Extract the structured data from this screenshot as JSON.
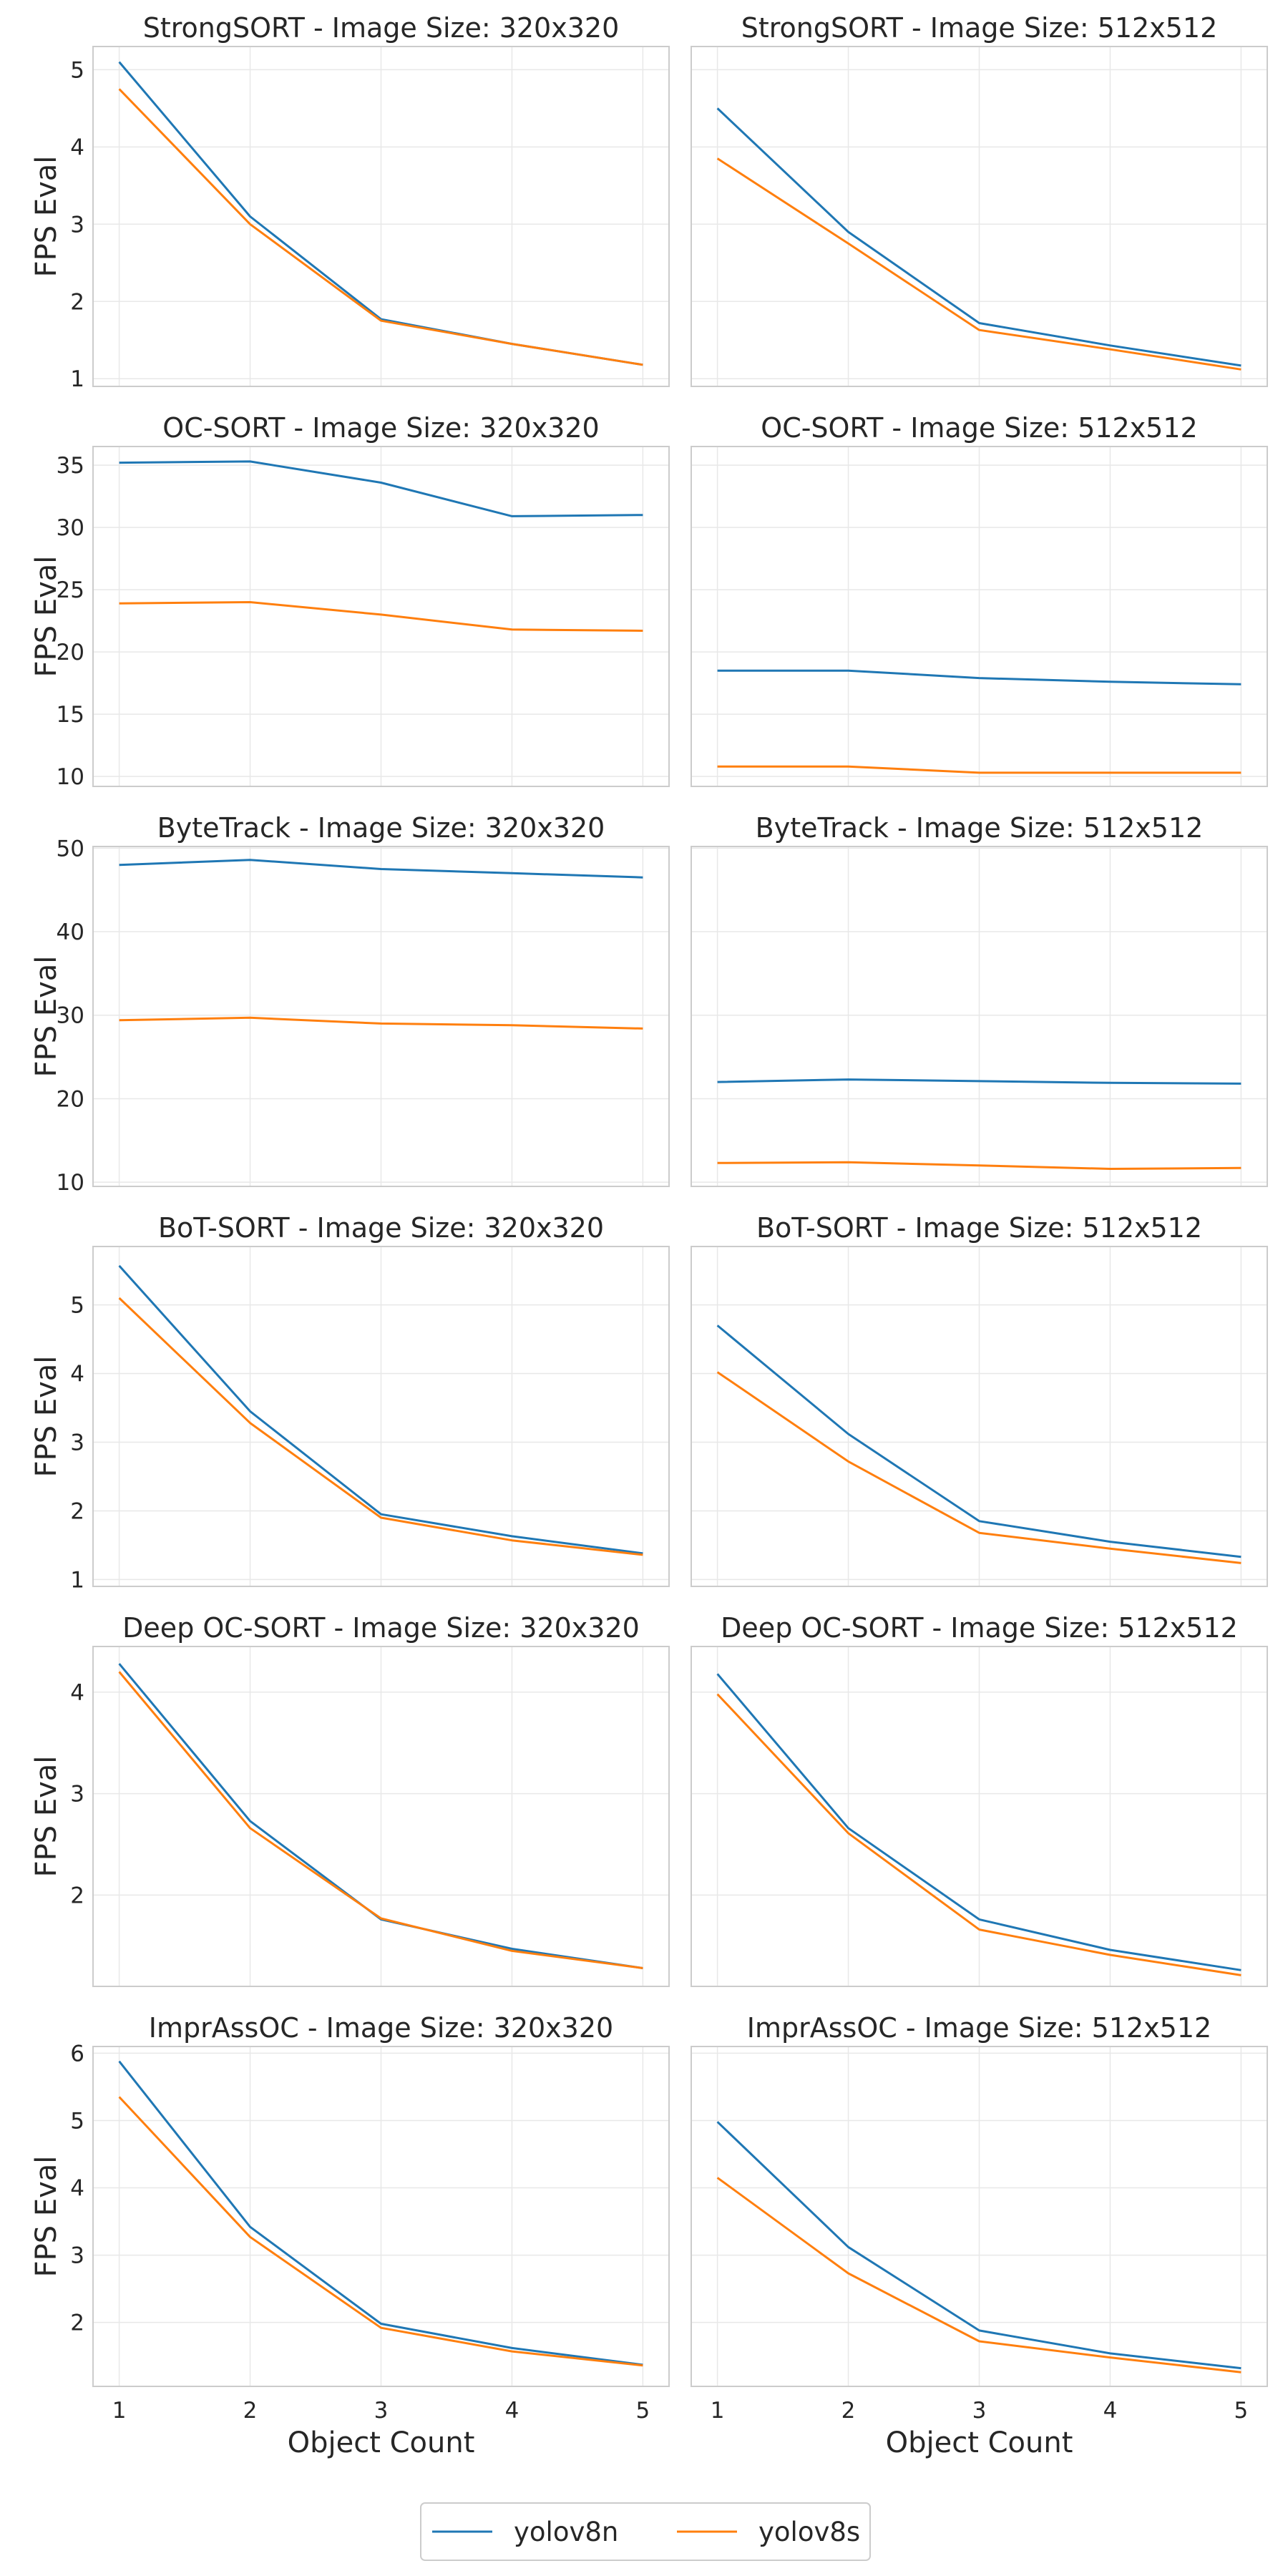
{
  "legend": [
    {
      "name": "yolov8n",
      "color": "#1f77b4"
    },
    {
      "name": "yolov8s",
      "color": "#ff7f0e"
    }
  ],
  "chart_data": [
    {
      "type": "line",
      "title": "StrongSORT - Image Size: 320x320",
      "xlabel": "",
      "ylabel": "FPS Eval",
      "x": [
        1,
        2,
        3,
        4,
        5
      ],
      "ylim": [
        0.9,
        5.3
      ],
      "yticks": [
        1,
        2,
        3,
        4,
        5
      ],
      "series": [
        {
          "name": "yolov8n",
          "values": [
            5.1,
            3.1,
            1.77,
            1.45,
            1.18
          ]
        },
        {
          "name": "yolov8s",
          "values": [
            4.75,
            3.0,
            1.75,
            1.45,
            1.18
          ]
        }
      ]
    },
    {
      "type": "line",
      "title": "StrongSORT - Image Size: 512x512",
      "xlabel": "",
      "ylabel": "",
      "x": [
        1,
        2,
        3,
        4,
        5
      ],
      "ylim": [
        0.9,
        5.3
      ],
      "yticks": [],
      "series": [
        {
          "name": "yolov8n",
          "values": [
            4.5,
            2.9,
            1.72,
            1.43,
            1.17
          ]
        },
        {
          "name": "yolov8s",
          "values": [
            3.85,
            2.75,
            1.63,
            1.38,
            1.12
          ]
        }
      ]
    },
    {
      "type": "line",
      "title": "OC-SORT - Image Size: 320x320",
      "xlabel": "",
      "ylabel": "FPS Eval",
      "x": [
        1,
        2,
        3,
        4,
        5
      ],
      "ylim": [
        9.2,
        36.5
      ],
      "yticks": [
        10,
        15,
        20,
        25,
        30,
        35
      ],
      "series": [
        {
          "name": "yolov8n",
          "values": [
            35.2,
            35.3,
            33.6,
            30.9,
            31.0
          ]
        },
        {
          "name": "yolov8s",
          "values": [
            23.9,
            24.0,
            23.0,
            21.8,
            21.7
          ]
        }
      ]
    },
    {
      "type": "line",
      "title": "OC-SORT - Image Size: 512x512",
      "xlabel": "",
      "ylabel": "",
      "x": [
        1,
        2,
        3,
        4,
        5
      ],
      "ylim": [
        9.2,
        36.5
      ],
      "yticks": [],
      "series": [
        {
          "name": "yolov8n",
          "values": [
            18.5,
            18.5,
            17.9,
            17.6,
            17.4
          ]
        },
        {
          "name": "yolov8s",
          "values": [
            10.8,
            10.8,
            10.3,
            10.3,
            10.3
          ]
        }
      ]
    },
    {
      "type": "line",
      "title": "ByteTrack - Image Size: 320x320",
      "xlabel": "",
      "ylabel": "FPS Eval",
      "x": [
        1,
        2,
        3,
        4,
        5
      ],
      "ylim": [
        9.5,
        50.2
      ],
      "yticks": [
        10,
        20,
        30,
        40,
        50
      ],
      "series": [
        {
          "name": "yolov8n",
          "values": [
            48.0,
            48.6,
            47.5,
            47.0,
            46.5
          ]
        },
        {
          "name": "yolov8s",
          "values": [
            29.4,
            29.7,
            29.0,
            28.8,
            28.4
          ]
        }
      ]
    },
    {
      "type": "line",
      "title": "ByteTrack - Image Size: 512x512",
      "xlabel": "",
      "ylabel": "",
      "x": [
        1,
        2,
        3,
        4,
        5
      ],
      "ylim": [
        9.5,
        50.2
      ],
      "yticks": [],
      "series": [
        {
          "name": "yolov8n",
          "values": [
            22.0,
            22.3,
            22.1,
            21.9,
            21.8
          ]
        },
        {
          "name": "yolov8s",
          "values": [
            12.3,
            12.4,
            12.0,
            11.6,
            11.7
          ]
        }
      ]
    },
    {
      "type": "line",
      "title": "BoT-SORT - Image Size: 320x320",
      "xlabel": "",
      "ylabel": "FPS Eval",
      "x": [
        1,
        2,
        3,
        4,
        5
      ],
      "ylim": [
        0.9,
        5.85
      ],
      "yticks": [
        1,
        2,
        3,
        4,
        5
      ],
      "series": [
        {
          "name": "yolov8n",
          "values": [
            5.57,
            3.45,
            1.95,
            1.63,
            1.38
          ]
        },
        {
          "name": "yolov8s",
          "values": [
            5.1,
            3.28,
            1.9,
            1.57,
            1.36
          ]
        }
      ]
    },
    {
      "type": "line",
      "title": "BoT-SORT - Image Size: 512x512",
      "xlabel": "",
      "ylabel": "",
      "x": [
        1,
        2,
        3,
        4,
        5
      ],
      "ylim": [
        0.9,
        5.85
      ],
      "yticks": [],
      "series": [
        {
          "name": "yolov8n",
          "values": [
            4.7,
            3.12,
            1.85,
            1.55,
            1.33
          ]
        },
        {
          "name": "yolov8s",
          "values": [
            4.02,
            2.72,
            1.68,
            1.45,
            1.24
          ]
        }
      ]
    },
    {
      "type": "line",
      "title": "Deep OC-SORT - Image Size: 320x320",
      "xlabel": "",
      "ylabel": "FPS Eval",
      "x": [
        1,
        2,
        3,
        4,
        5
      ],
      "ylim": [
        1.1,
        4.45
      ],
      "yticks": [
        2,
        3,
        4
      ],
      "series": [
        {
          "name": "yolov8n",
          "values": [
            4.28,
            2.73,
            1.76,
            1.47,
            1.28
          ]
        },
        {
          "name": "yolov8s",
          "values": [
            4.2,
            2.66,
            1.77,
            1.45,
            1.28
          ]
        }
      ]
    },
    {
      "type": "line",
      "title": "Deep OC-SORT - Image Size: 512x512",
      "xlabel": "",
      "ylabel": "",
      "x": [
        1,
        2,
        3,
        4,
        5
      ],
      "ylim": [
        1.1,
        4.45
      ],
      "yticks": [],
      "series": [
        {
          "name": "yolov8n",
          "values": [
            4.18,
            2.66,
            1.76,
            1.46,
            1.26
          ]
        },
        {
          "name": "yolov8s",
          "values": [
            3.98,
            2.61,
            1.66,
            1.41,
            1.21
          ]
        }
      ]
    },
    {
      "type": "line",
      "title": "ImprAssOC - Image Size: 320x320",
      "xlabel": "Object Count",
      "ylabel": "FPS Eval",
      "x": [
        1,
        2,
        3,
        4,
        5
      ],
      "ylim": [
        1.05,
        6.1
      ],
      "yticks": [
        2,
        3,
        4,
        5,
        6
      ],
      "series": [
        {
          "name": "yolov8n",
          "values": [
            5.88,
            3.42,
            1.98,
            1.62,
            1.37
          ]
        },
        {
          "name": "yolov8s",
          "values": [
            5.35,
            3.27,
            1.92,
            1.57,
            1.36
          ]
        }
      ]
    },
    {
      "type": "line",
      "title": "ImprAssOC - Image Size: 512x512",
      "xlabel": "Object Count",
      "ylabel": "",
      "x": [
        1,
        2,
        3,
        4,
        5
      ],
      "ylim": [
        1.05,
        6.1
      ],
      "yticks": [],
      "series": [
        {
          "name": "yolov8n",
          "values": [
            4.98,
            3.12,
            1.88,
            1.54,
            1.32
          ]
        },
        {
          "name": "yolov8s",
          "values": [
            4.15,
            2.73,
            1.72,
            1.48,
            1.26
          ]
        }
      ]
    }
  ]
}
